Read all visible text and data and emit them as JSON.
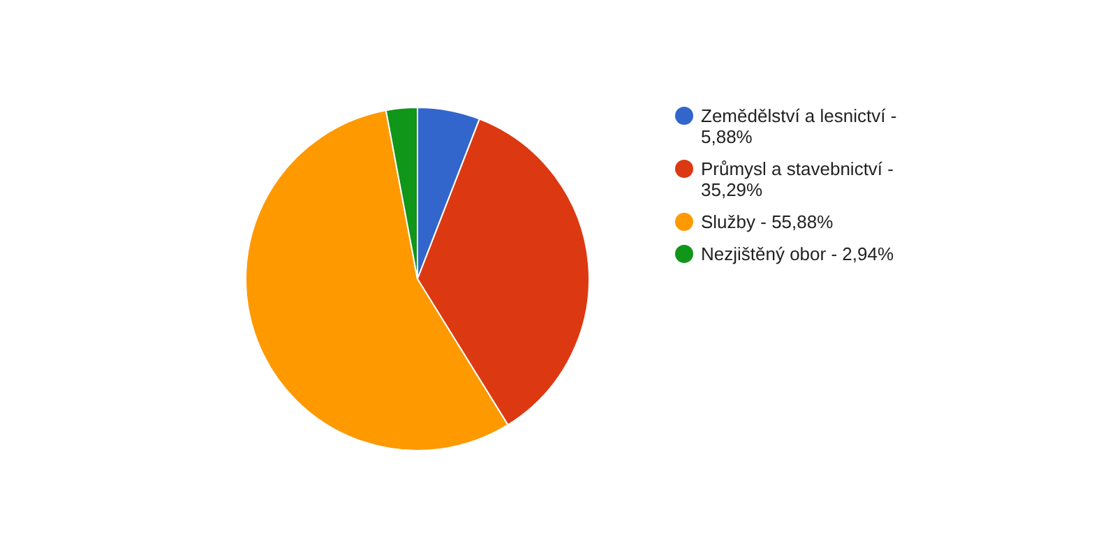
{
  "chart_data": {
    "type": "pie",
    "categories": [
      "Zemědělství a lesnictví - 5,88%",
      "Průmysl a stavebnictví - 35,29%",
      "Služby - 55,88%",
      "Nezjištěný obor - 2,94%"
    ],
    "values": [
      5.88,
      35.29,
      55.88,
      2.94
    ],
    "colors": [
      "#3366cc",
      "#dc3912",
      "#ff9900",
      "#109618"
    ],
    "legend": "right"
  }
}
